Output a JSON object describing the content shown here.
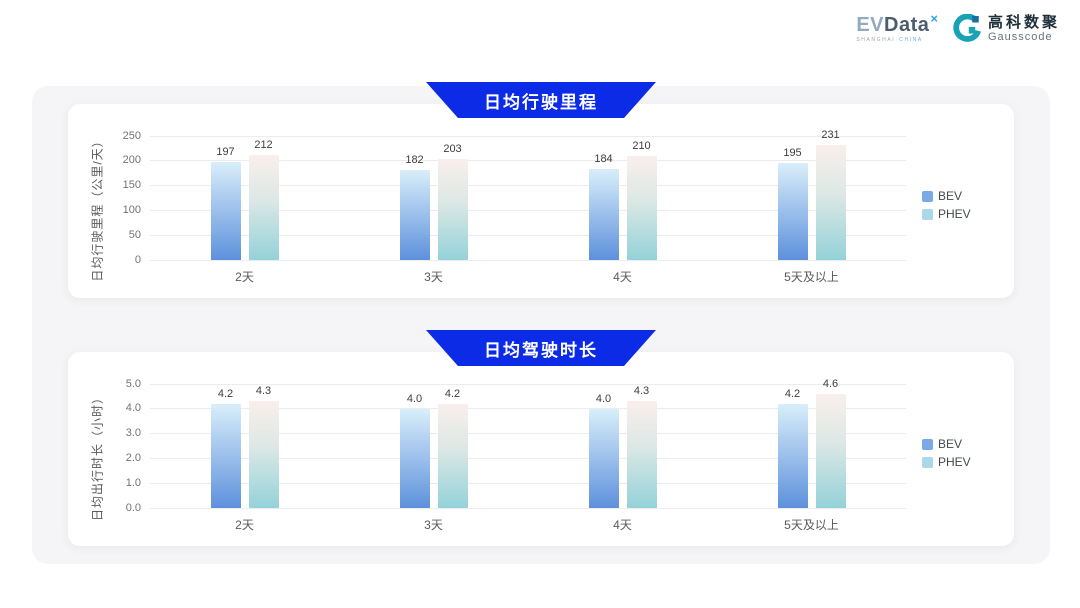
{
  "logo": {
    "evdata_ev": "EV",
    "evdata_data": "Data",
    "evdata_mark": "×",
    "evdata_sub_1": "SHANGHAI",
    "evdata_sub_2": "CHINA",
    "gausscode_cn": "高科数聚",
    "gausscode_en": "Gausscode"
  },
  "colors": {
    "banner_blue": "#0c2be6",
    "bev_gradient_top": "#d9eefa",
    "bev_gradient_bottom": "#5d91dc",
    "phev_gradient_top": "#f9efec",
    "phev_gradient_mid": "#dde8e5",
    "phev_gradient_bottom": "#94d2d9",
    "legend_bev": "#79aae6",
    "legend_phev": "#a9d9e8",
    "gausscode_teal": "#17a2b5",
    "gausscode_dark": "#1b6fa0"
  },
  "chart_data": [
    {
      "type": "bar",
      "title": "日均行驶里程",
      "ylabel": "日均行驶里程（公里/天）",
      "xlabel": "",
      "categories": [
        "2天",
        "3天",
        "4天",
        "5天及以上"
      ],
      "series": [
        {
          "name": "BEV",
          "values": [
            197,
            182,
            184,
            195
          ],
          "labels": [
            "197",
            "182",
            "184",
            "195"
          ]
        },
        {
          "name": "PHEV",
          "values": [
            212,
            203,
            210,
            231
          ],
          "labels": [
            "212",
            "203",
            "210",
            "231"
          ]
        }
      ],
      "ylim": [
        0,
        250
      ],
      "yticks": [
        "0",
        "50",
        "100",
        "150",
        "200",
        "250"
      ],
      "grid": true,
      "legend_position": "right",
      "legend": [
        "BEV",
        "PHEV"
      ]
    },
    {
      "type": "bar",
      "title": "日均驾驶时长",
      "ylabel": "日均出行时长（小时）",
      "xlabel": "",
      "categories": [
        "2天",
        "3天",
        "4天",
        "5天及以上"
      ],
      "series": [
        {
          "name": "BEV",
          "values": [
            4.2,
            4.0,
            4.0,
            4.2
          ],
          "labels": [
            "4.2",
            "4.0",
            "4.0",
            "4.2"
          ]
        },
        {
          "name": "PHEV",
          "values": [
            4.3,
            4.2,
            4.3,
            4.6
          ],
          "labels": [
            "4.3",
            "4.2",
            "4.3",
            "4.6"
          ]
        }
      ],
      "ylim": [
        0,
        5
      ],
      "yticks": [
        "0.0",
        "1.0",
        "2.0",
        "3.0",
        "4.0",
        "5.0"
      ],
      "grid": true,
      "legend_position": "right",
      "legend": [
        "BEV",
        "PHEV"
      ]
    }
  ]
}
